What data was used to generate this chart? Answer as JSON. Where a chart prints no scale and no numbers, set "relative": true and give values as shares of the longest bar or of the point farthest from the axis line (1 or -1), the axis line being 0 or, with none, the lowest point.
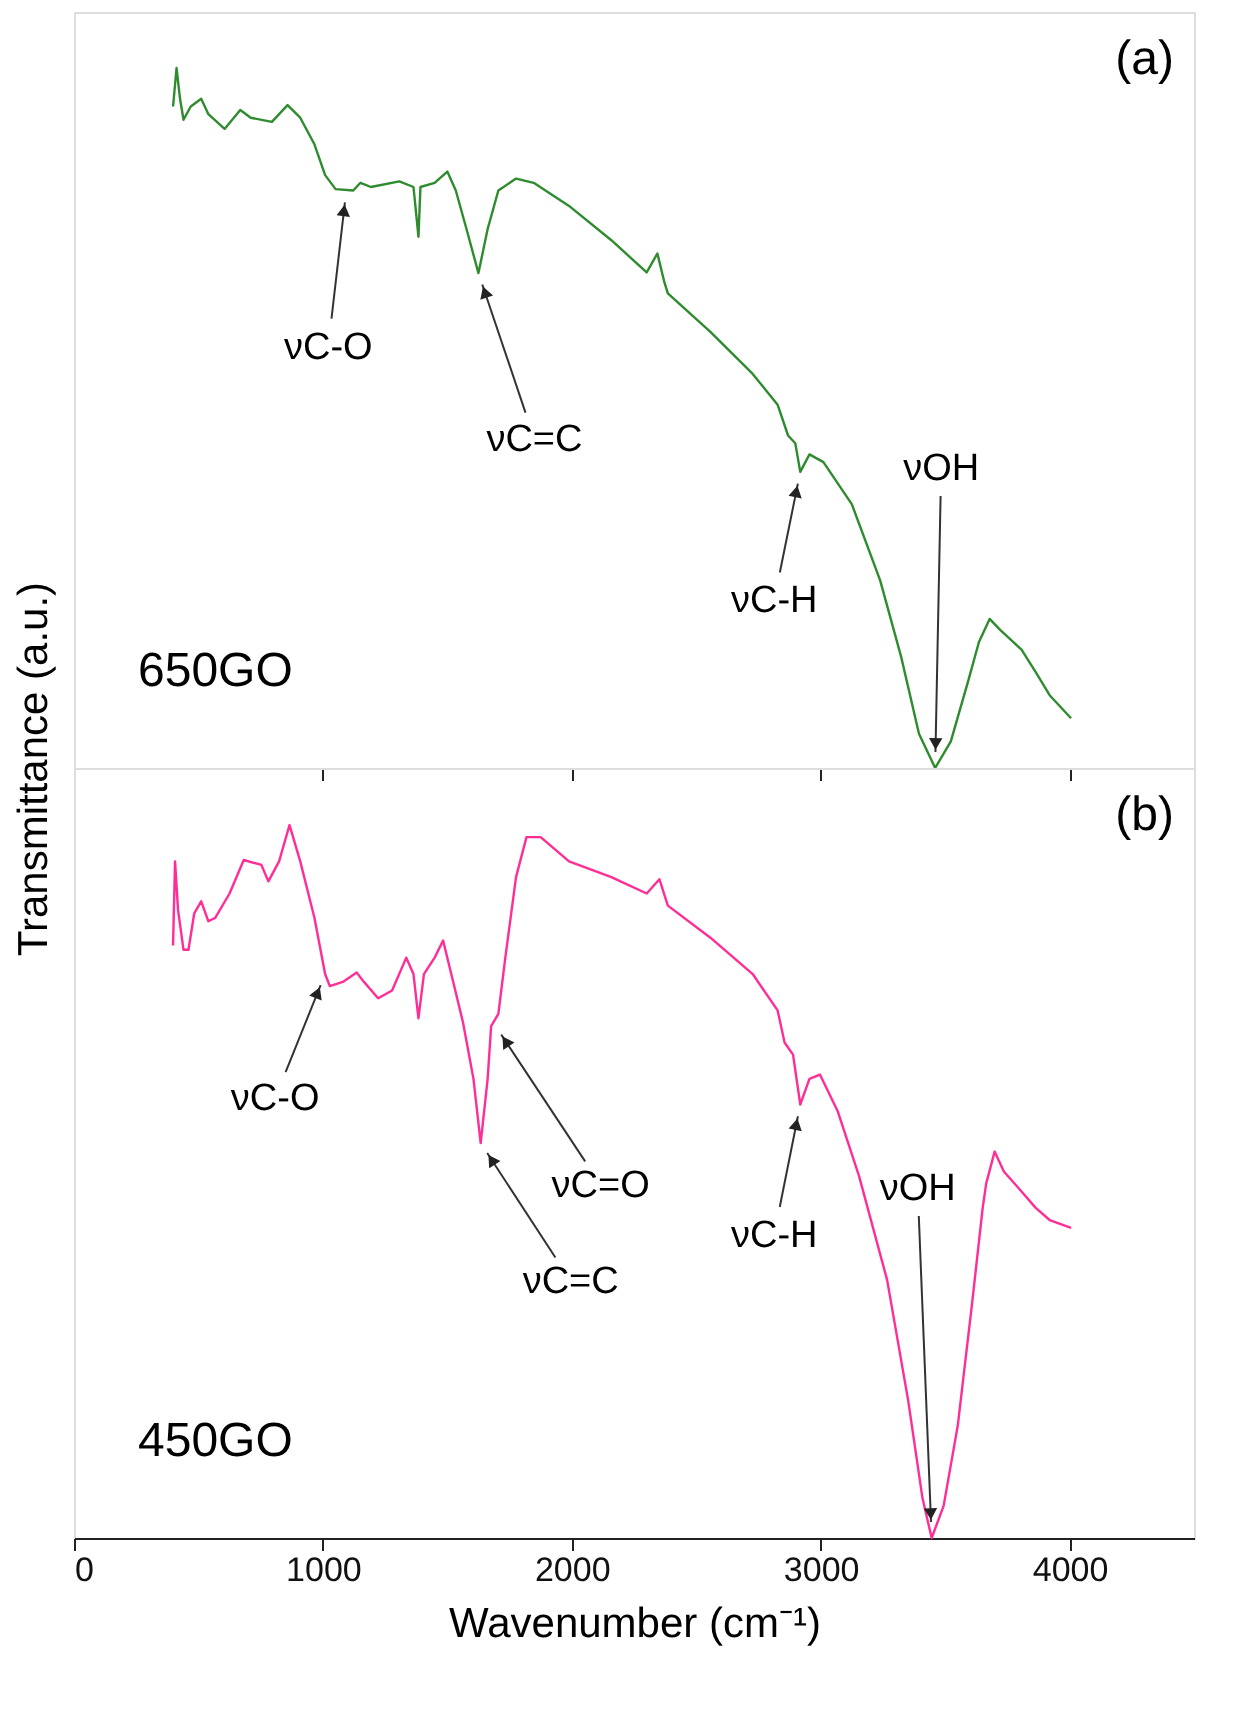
{
  "chart_data": [
    {
      "type": "line",
      "relative": true,
      "ylabel": "Transmittance (a.u.)",
      "xlim": [
        0,
        4500
      ],
      "xticks": [
        0,
        1000,
        2000,
        3000,
        4000
      ],
      "tick_labels": false,
      "grid": false,
      "marker": "none",
      "line_style": "solid",
      "annotations": [
        "(a)",
        "650GO",
        {
          "text": "νC-O",
          "x": 1094,
          "y": 0.825
        },
        {
          "text": "νC=C",
          "x": 1625,
          "y": 0.707
        },
        {
          "text": "νC-H",
          "x": 2918,
          "y": 0.423
        },
        {
          "text": "νOH",
          "x": 3460,
          "y": 0.0
        }
      ],
      "series": [
        {
          "color": "#2e8b2e",
          "x": [
            398,
            412,
            426,
            440,
            469,
            511,
            540,
            605,
            668,
            710,
            795,
            858,
            909,
            966,
            1009,
            1051,
            1122,
            1151,
            1193,
            1307,
            1364,
            1384,
            1392,
            1449,
            1500,
            1534,
            1577,
            1625,
            1662,
            1705,
            1776,
            1847,
            1989,
            2159,
            2301,
            2344,
            2372,
            2386,
            2557,
            2727,
            2827,
            2869,
            2898,
            2918,
            2955,
            3011,
            3125,
            3239,
            3324,
            3395,
            3460,
            3523,
            3594,
            3636,
            3679,
            3722,
            3807,
            3864,
            3920,
            4006
          ],
          "values": [
            0.945,
            1.0,
            0.956,
            0.926,
            0.945,
            0.956,
            0.934,
            0.913,
            0.94,
            0.929,
            0.923,
            0.947,
            0.929,
            0.891,
            0.847,
            0.827,
            0.825,
            0.836,
            0.83,
            0.838,
            0.83,
            0.759,
            0.83,
            0.836,
            0.852,
            0.825,
            0.77,
            0.707,
            0.77,
            0.825,
            0.842,
            0.836,
            0.803,
            0.754,
            0.708,
            0.735,
            0.694,
            0.678,
            0.623,
            0.563,
            0.519,
            0.475,
            0.464,
            0.423,
            0.448,
            0.437,
            0.377,
            0.268,
            0.158,
            0.049,
            0.0,
            0.038,
            0.126,
            0.18,
            0.213,
            0.197,
            0.169,
            0.137,
            0.104,
            0.071
          ]
        }
      ]
    },
    {
      "type": "line",
      "relative": true,
      "xlabel": "Wavenumber (cm⁻¹)",
      "xlim": [
        0,
        4500
      ],
      "xticks": [
        0,
        1000,
        2000,
        3000,
        4000
      ],
      "tick_labels": "x",
      "grid": false,
      "marker": "none",
      "line_style": "solid",
      "annotations": [
        "(b)",
        "450GO",
        {
          "text": "νC-O",
          "x": 1009,
          "y": 0.791
        },
        {
          "text": "νC=C",
          "x": 1634,
          "y": 0.554
        },
        {
          "text": "νC=O",
          "x": 1690,
          "y": 0.72
        },
        {
          "text": "νC-H",
          "x": 2918,
          "y": 0.608
        },
        {
          "text": "νOH",
          "x": 3446,
          "y": 0.0
        }
      ],
      "series": [
        {
          "color": "#ff2d95",
          "x": [
            398,
            406,
            418,
            440,
            460,
            483,
            511,
            540,
            568,
            625,
            682,
            753,
            781,
            824,
            866,
            909,
            966,
            1009,
            1028,
            1080,
            1136,
            1165,
            1222,
            1278,
            1335,
            1364,
            1384,
            1406,
            1449,
            1483,
            1520,
            1563,
            1605,
            1634,
            1662,
            1676,
            1705,
            1733,
            1776,
            1818,
            1875,
            1989,
            2159,
            2301,
            2352,
            2386,
            2557,
            2727,
            2827,
            2855,
            2889,
            2918,
            2955,
            2997,
            3068,
            3154,
            3267,
            3352,
            3409,
            3446,
            3494,
            3551,
            3608,
            3651,
            3665,
            3699,
            3736,
            3807,
            3864,
            3920,
            4006
          ],
          "values": [
            0.831,
            0.949,
            0.881,
            0.825,
            0.825,
            0.876,
            0.893,
            0.865,
            0.87,
            0.904,
            0.951,
            0.944,
            0.921,
            0.949,
            1.0,
            0.949,
            0.87,
            0.791,
            0.774,
            0.78,
            0.793,
            0.78,
            0.757,
            0.768,
            0.814,
            0.791,
            0.729,
            0.791,
            0.814,
            0.838,
            0.785,
            0.723,
            0.644,
            0.554,
            0.644,
            0.718,
            0.735,
            0.814,
            0.927,
            0.983,
            0.983,
            0.949,
            0.927,
            0.904,
            0.924,
            0.887,
            0.842,
            0.791,
            0.74,
            0.695,
            0.678,
            0.608,
            0.644,
            0.65,
            0.599,
            0.508,
            0.362,
            0.192,
            0.056,
            0.0,
            0.045,
            0.158,
            0.328,
            0.463,
            0.497,
            0.542,
            0.514,
            0.486,
            0.463,
            0.446,
            0.435
          ]
        }
      ]
    }
  ]
}
